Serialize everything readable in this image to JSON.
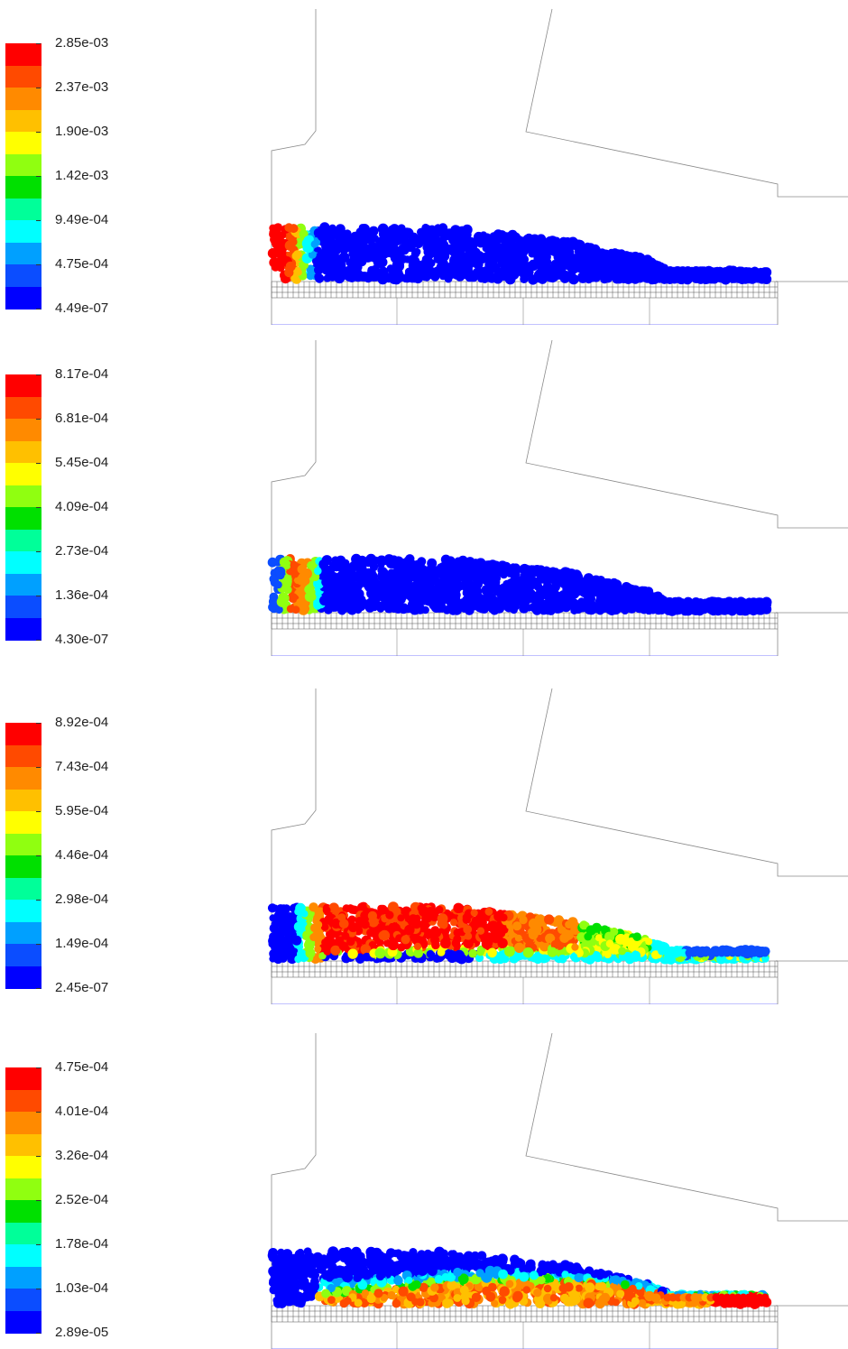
{
  "colormap": [
    "#0000ff",
    "#0b4dff",
    "#00a0ff",
    "#00ffff",
    "#00ff99",
    "#00e000",
    "#90ff10",
    "#ffff00",
    "#ffc000",
    "#ff8a00",
    "#ff4a00",
    "#ff0000"
  ],
  "panels": [
    {
      "labels": [
        "2.85e-03",
        "2.37e-03",
        "1.90e-03",
        "1.42e-03",
        "9.49e-04",
        "4.75e-04",
        "4.49e-07"
      ],
      "pattern": "inlet-hot"
    },
    {
      "labels": [
        "8.17e-04",
        "6.81e-04",
        "5.45e-04",
        "4.09e-04",
        "2.73e-04",
        "1.36e-04",
        "4.30e-07"
      ],
      "pattern": "inlet-band"
    },
    {
      "labels": [
        "8.92e-04",
        "7.43e-04",
        "5.95e-04",
        "4.46e-04",
        "2.98e-04",
        "1.49e-04",
        "2.45e-07"
      ],
      "pattern": "bed-hot"
    },
    {
      "labels": [
        "4.75e-04",
        "4.01e-04",
        "3.26e-04",
        "2.52e-04",
        "1.78e-04",
        "1.03e-04",
        "2.89e-05"
      ],
      "pattern": "grate-hot"
    }
  ]
}
